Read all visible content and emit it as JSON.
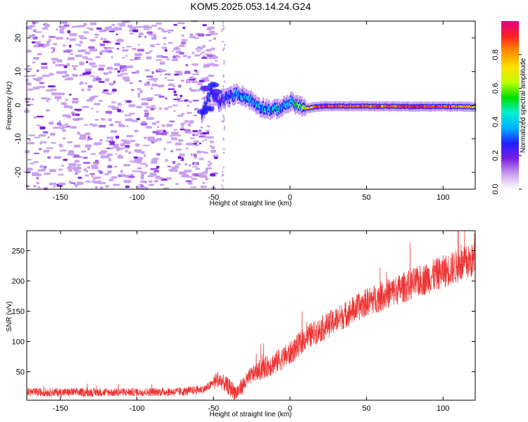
{
  "title": "KOM5.2025.053.14.24.G24",
  "chart_data": [
    {
      "type": "heatmap",
      "xlabel": "Height of straight line (km)",
      "ylabel": "Frequency (Hz)",
      "xlim": [
        -172,
        121
      ],
      "ylim": [
        -25,
        25
      ],
      "xticks": [
        -150,
        -100,
        -50,
        0,
        50,
        100
      ],
      "yticks": [
        -20,
        -10,
        0,
        10,
        20
      ],
      "colorbar": {
        "label": "Normalized spectral amplitude",
        "range": [
          0,
          1
        ],
        "ticks": [
          0.0,
          0.2,
          0.4,
          0.6,
          0.8
        ],
        "tick_labels": [
          "0.0",
          "0.2",
          "0.4",
          "0.6",
          "0.8"
        ],
        "colormap": [
          "#ffffff",
          "#c9a0f0",
          "#7a1ee0",
          "#2020ff",
          "#00b0ff",
          "#00f0d0",
          "#00e000",
          "#c0ff00",
          "#ffe000",
          "#ff9000",
          "#ff2020",
          "#e0008a"
        ]
      },
      "ridge": [
        {
          "x": -58,
          "f": -3,
          "a": 0.25
        },
        {
          "x": -52,
          "f": 4,
          "a": 0.25
        },
        {
          "x": -47,
          "f": 1,
          "a": 0.2
        },
        {
          "x": -35,
          "f": 3.5,
          "a": 0.35
        },
        {
          "x": -28,
          "f": 2,
          "a": 0.35
        },
        {
          "x": -20,
          "f": -0.5,
          "a": 0.3
        },
        {
          "x": -12,
          "f": -1.5,
          "a": 0.4
        },
        {
          "x": -5,
          "f": -0.5,
          "a": 0.4
        },
        {
          "x": 0,
          "f": 1,
          "a": 0.45
        },
        {
          "x": 5,
          "f": 0,
          "a": 0.5
        },
        {
          "x": 10,
          "f": -1,
          "a": 0.7
        },
        {
          "x": 20,
          "f": -0.3,
          "a": 0.9
        },
        {
          "x": 40,
          "f": -0.3,
          "a": 0.9
        },
        {
          "x": 60,
          "f": -0.3,
          "a": 0.85
        },
        {
          "x": 80,
          "f": -0.4,
          "a": 0.95
        },
        {
          "x": 100,
          "f": -0.4,
          "a": 0.9
        },
        {
          "x": 121,
          "f": -0.5,
          "a": 0.7
        }
      ],
      "noise_region": [
        -172,
        -48
      ]
    },
    {
      "type": "line",
      "xlabel": "Height of straight line (km)",
      "ylabel": "SNR (v/v)",
      "xlim": [
        -172,
        121
      ],
      "ylim": [
        3,
        283
      ],
      "xticks": [
        -150,
        -100,
        -50,
        0,
        50,
        100
      ],
      "yticks": [
        50,
        100,
        150,
        200,
        250
      ],
      "series_color": "#ee3333",
      "trend": [
        {
          "x": -172,
          "y": 16
        },
        {
          "x": -120,
          "y": 16
        },
        {
          "x": -70,
          "y": 17
        },
        {
          "x": -55,
          "y": 22
        },
        {
          "x": -47,
          "y": 38
        },
        {
          "x": -40,
          "y": 25
        },
        {
          "x": -35,
          "y": 15
        },
        {
          "x": -25,
          "y": 45
        },
        {
          "x": -10,
          "y": 65
        },
        {
          "x": 0,
          "y": 80
        },
        {
          "x": 10,
          "y": 105
        },
        {
          "x": 20,
          "y": 120
        },
        {
          "x": 30,
          "y": 135
        },
        {
          "x": 50,
          "y": 165
        },
        {
          "x": 70,
          "y": 185
        },
        {
          "x": 90,
          "y": 205
        },
        {
          "x": 110,
          "y": 225
        },
        {
          "x": 121,
          "y": 235
        }
      ]
    }
  ]
}
